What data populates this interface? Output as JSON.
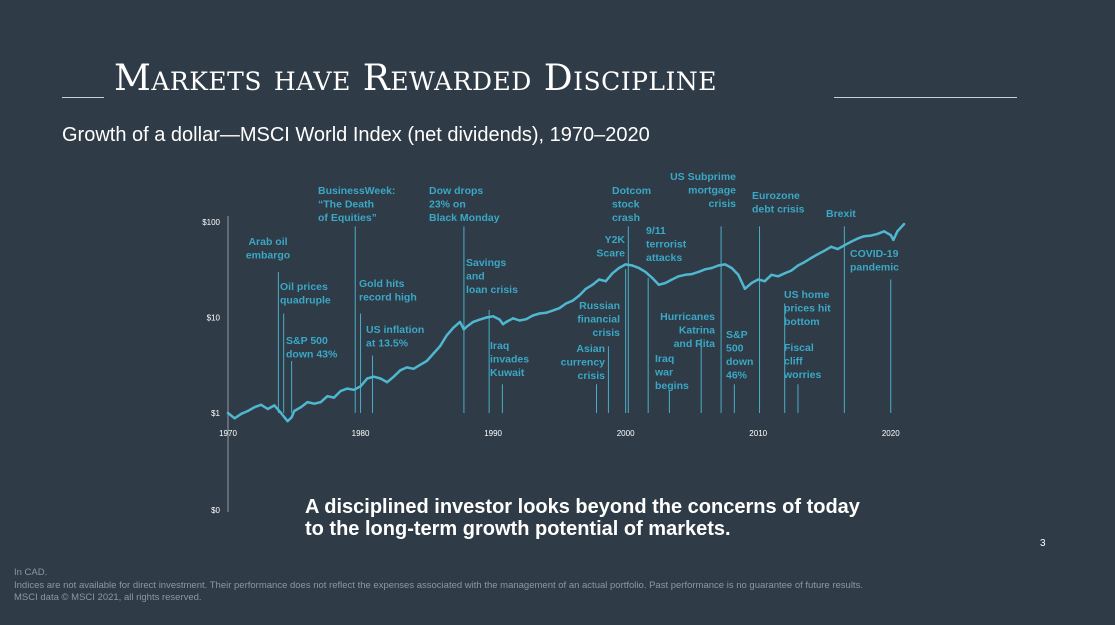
{
  "slide": {
    "title": "Markets have Rewarded Discipline",
    "subtitle": "Growth of a dollar—MSCI World Index (net dividends), 1970–2020",
    "tagline_line1": "A disciplined investor looks beyond the concerns of today",
    "tagline_line2": "to the long-term growth potential of markets.",
    "page_number": "3",
    "footnote_1": "In CAD.",
    "footnote_2": "Indices are not available for direct investment. Their performance does not reflect the expenses associated with the management of an actual portfolio. Past performance is no guarantee of future results.",
    "footnote_3": "MSCI data © MSCI 2021, all rights reserved."
  },
  "colors": {
    "background": "#2f3b46",
    "series_line": "#4fb7cf",
    "annotation_text": "#3aa8c6",
    "annotation_line": "#4aaec9",
    "axis_text": "#ffffff"
  },
  "chart_data": {
    "type": "line",
    "yscale": "log",
    "xlim": [
      1970,
      2021
    ],
    "ylim": [
      0.1,
      100
    ],
    "y_ticks": [
      {
        "value": 100,
        "label": "$100"
      },
      {
        "value": 10,
        "label": "$10"
      },
      {
        "value": 1,
        "label": "$1"
      },
      {
        "value": 0.1,
        "label": "$0"
      }
    ],
    "x_ticks": [
      1970,
      1980,
      1990,
      2000,
      2010,
      2020
    ],
    "grid": false,
    "series": [
      {
        "x": [
          1970,
          1970.5,
          1971,
          1971.5,
          1972,
          1972.5,
          1973,
          1973.5,
          1974,
          1974.5,
          1974.8,
          1975,
          1975.5,
          1976,
          1976.5,
          1977,
          1977.5,
          1978,
          1978.5,
          1979,
          1979.5,
          1980,
          1980.5,
          1981,
          1981.5,
          1982,
          1982.5,
          1983,
          1983.5,
          1984,
          1984.5,
          1985,
          1985.5,
          1986,
          1986.5,
          1987,
          1987.5,
          1987.8,
          1988,
          1988.5,
          1989,
          1989.5,
          1990,
          1990.5,
          1990.75,
          1991,
          1991.5,
          1992,
          1992.5,
          1993,
          1993.5,
          1994,
          1994.5,
          1995,
          1995.5,
          1996,
          1996.5,
          1997,
          1997.5,
          1998,
          1998.5,
          1999,
          1999.5,
          2000,
          2000.5,
          2001,
          2001.5,
          2002,
          2002.5,
          2003,
          2003.5,
          2004,
          2004.5,
          2005,
          2005.5,
          2006,
          2006.5,
          2007,
          2007.5,
          2008,
          2008.5,
          2009,
          2009.5,
          2010,
          2010.5,
          2011,
          2011.5,
          2012,
          2012.5,
          2013,
          2013.5,
          2014,
          2014.5,
          2015,
          2015.5,
          2016,
          2016.5,
          2017,
          2017.5,
          2018,
          2018.5,
          2019,
          2019.5,
          2020,
          2020.2,
          2020.5,
          2021
        ],
        "values": [
          1.0,
          0.88,
          0.98,
          1.05,
          1.15,
          1.22,
          1.1,
          1.2,
          1.0,
          0.82,
          0.9,
          1.05,
          1.15,
          1.3,
          1.25,
          1.3,
          1.5,
          1.45,
          1.7,
          1.8,
          1.75,
          1.9,
          2.3,
          2.4,
          2.3,
          2.1,
          2.4,
          2.8,
          3.0,
          2.9,
          3.2,
          3.5,
          4.2,
          5.0,
          6.5,
          7.8,
          9.0,
          7.5,
          8.0,
          9.0,
          9.5,
          10.0,
          10.3,
          9.5,
          8.5,
          9.0,
          9.8,
          9.3,
          9.6,
          10.5,
          11.0,
          11.2,
          11.8,
          12.5,
          14.0,
          15.0,
          17.0,
          20.0,
          22.0,
          25.0,
          24.0,
          29.0,
          33.0,
          36.0,
          35.0,
          33.0,
          30.0,
          26.0,
          22.0,
          23.0,
          25.0,
          27.0,
          28.0,
          28.5,
          30.0,
          32.0,
          33.0,
          35.0,
          36.0,
          33.0,
          28.0,
          20.0,
          23.0,
          25.0,
          24.0,
          28.0,
          27.0,
          29.0,
          31.0,
          35.0,
          38.0,
          42.0,
          46.0,
          50.0,
          55.0,
          52.0,
          57.0,
          62.0,
          67.0,
          71.0,
          72.0,
          75.0,
          80.0,
          73.0,
          65.0,
          80.0,
          95.0
        ]
      }
    ],
    "annotations": [
      {
        "text": [
          "Arab oil",
          "embargo"
        ],
        "x": 1973.8,
        "value": 30
      },
      {
        "text": [
          "Oil prices",
          "quadruple"
        ],
        "x": 1974.2,
        "value": 11
      },
      {
        "text": [
          "S&P 500",
          "down 43%"
        ],
        "x": 1974.8,
        "value": 3.5
      },
      {
        "text": [
          "BusinessWeek:",
          "“The Death",
          "of Equities”"
        ],
        "x": 1979.6,
        "value": 90
      },
      {
        "text": [
          "Gold hits",
          "record high"
        ],
        "x": 1980.0,
        "value": 11
      },
      {
        "text": [
          "US inflation",
          "at 13.5%"
        ],
        "x": 1980.9,
        "value": 4
      },
      {
        "text": [
          "Dow drops",
          "23% on",
          "Black Monday"
        ],
        "x": 1987.8,
        "value": 90
      },
      {
        "text": [
          "Savings",
          "and",
          "loan crisis"
        ],
        "x": 1989.7,
        "value": 12
      },
      {
        "text": [
          "Iraq",
          "invades",
          "Kuwait"
        ],
        "x": 1990.7,
        "value": 2
      },
      {
        "text": [
          "Russian",
          "financial",
          "crisis"
        ],
        "x": 1998.7,
        "value": 5
      },
      {
        "text": [
          "Asian",
          "currency",
          "crisis"
        ],
        "x": 1997.8,
        "value": 2
      },
      {
        "text": [
          "Y2K",
          "Scare"
        ],
        "x": 2000.0,
        "value": 32
      },
      {
        "text": [
          "Dotcom",
          "stock",
          "crash"
        ],
        "x": 2000.2,
        "value": 90
      },
      {
        "text": [
          "9/11",
          "terrorist",
          "attacks"
        ],
        "x": 2001.7,
        "value": 26
      },
      {
        "text": [
          "Iraq",
          "war",
          "begins"
        ],
        "x": 2003.3,
        "value": 1.7
      },
      {
        "text": [
          "US Subprime",
          "mortgage",
          "crisis"
        ],
        "x": 2007.2,
        "value": 90
      },
      {
        "text": [
          "Hurricanes",
          "Katrina",
          "and Rita"
        ],
        "x": 2005.7,
        "value": 6
      },
      {
        "text": [
          "S&P",
          "500",
          "down",
          "46%"
        ],
        "x": 2008.2,
        "value": 2
      },
      {
        "text": [
          "Eurozone",
          "debt crisis"
        ],
        "x": 2010.1,
        "value": 90
      },
      {
        "text": [
          "US home",
          "prices hit",
          "bottom"
        ],
        "x": 2012.0,
        "value": 14
      },
      {
        "text": [
          "Fiscal",
          "cliff",
          "worries"
        ],
        "x": 2013.0,
        "value": 2
      },
      {
        "text": [
          "Brexit"
        ],
        "x": 2016.5,
        "value": 90
      },
      {
        "text": [
          "COVID-19",
          "pandemic"
        ],
        "x": 2020.0,
        "value": 25
      }
    ]
  }
}
